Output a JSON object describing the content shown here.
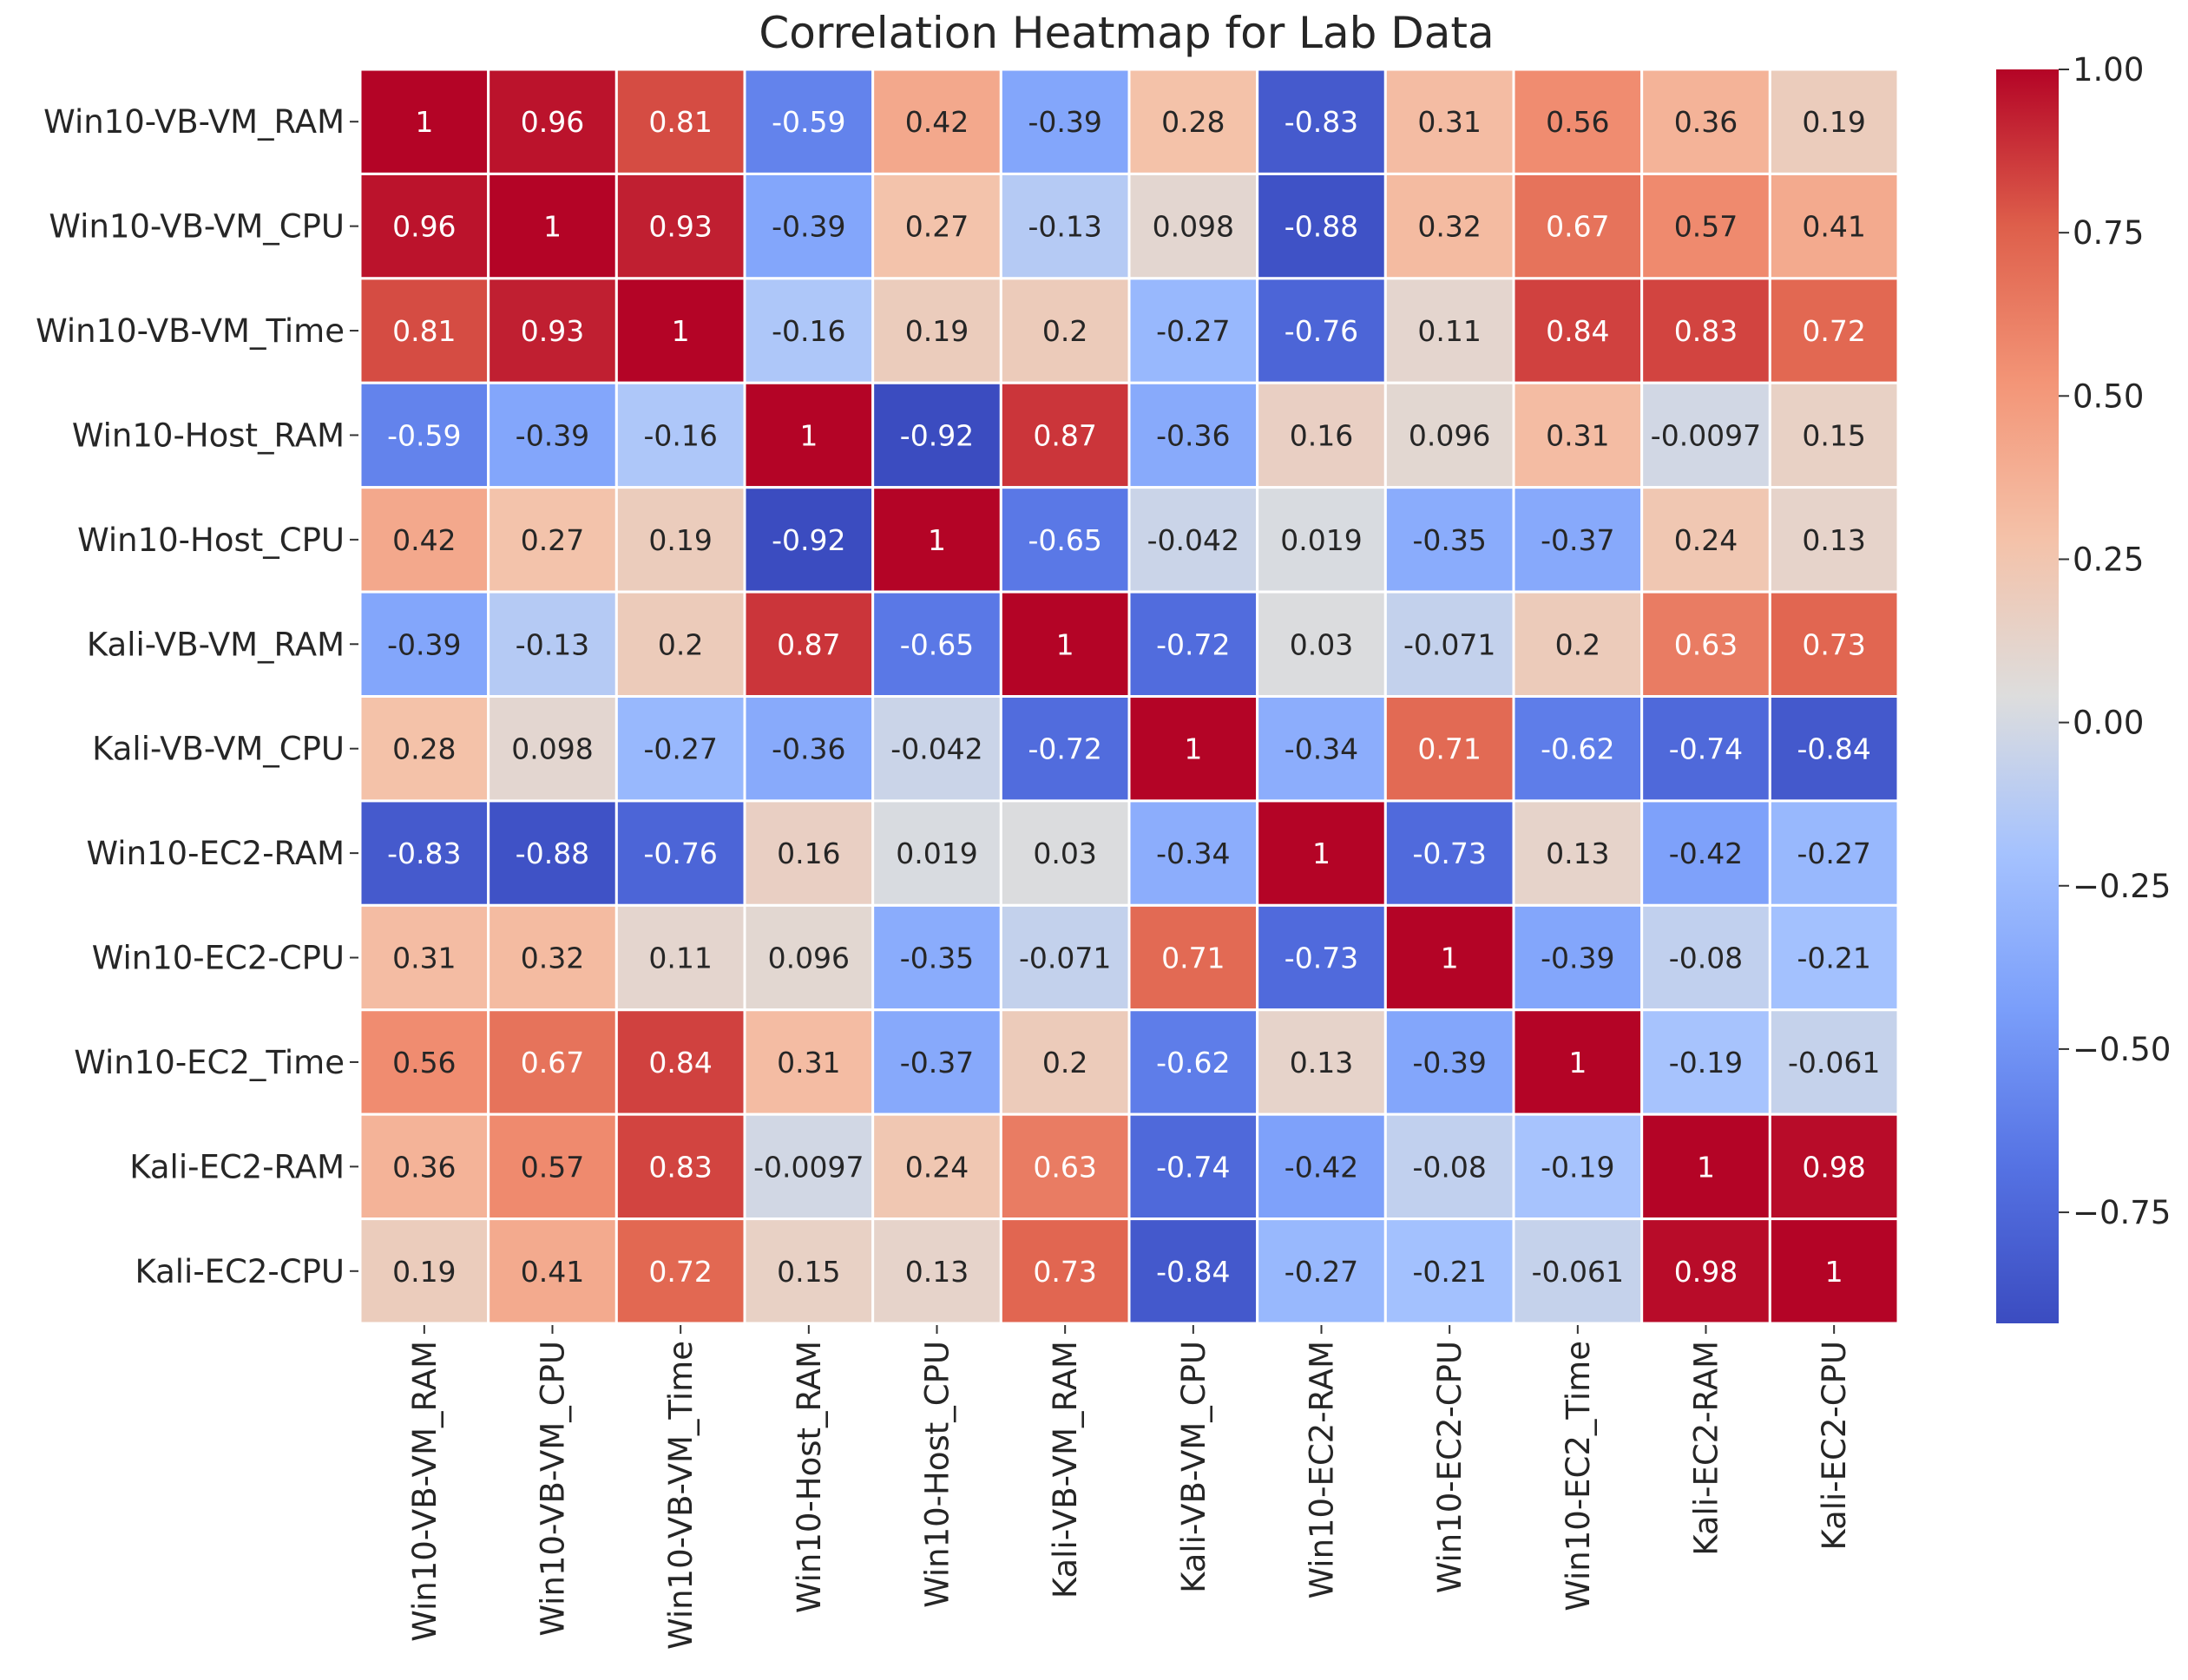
{
  "chart_data": {
    "type": "heatmap",
    "title": "Correlation Heatmap for Lab Data",
    "xlabel": "",
    "ylabel": "",
    "colormap": "coolwarm",
    "row_labels": [
      "Win10-VB-VM_RAM",
      "Win10-VB-VM_CPU",
      "Win10-VB-VM_Time",
      "Win10-Host_RAM",
      "Win10-Host_CPU",
      "Kali-VB-VM_RAM",
      "Kali-VB-VM_CPU",
      "Win10-EC2-RAM",
      "Win10-EC2-CPU",
      "Win10-EC2_Time",
      "Kali-EC2-RAM",
      "Kali-EC2-CPU"
    ],
    "col_labels": [
      "Win10-VB-VM_RAM",
      "Win10-VB-VM_CPU",
      "Win10-VB-VM_Time",
      "Win10-Host_RAM",
      "Win10-Host_CPU",
      "Kali-VB-VM_RAM",
      "Kali-VB-VM_CPU",
      "Win10-EC2-RAM",
      "Win10-EC2-CPU",
      "Win10-EC2_Time",
      "Kali-EC2-RAM",
      "Kali-EC2-CPU"
    ],
    "cell_labels": [
      [
        "1",
        "0.96",
        "0.81",
        "-0.59",
        "0.42",
        "-0.39",
        "0.28",
        "-0.83",
        "0.31",
        "0.56",
        "0.36",
        "0.19"
      ],
      [
        "0.96",
        "1",
        "0.93",
        "-0.39",
        "0.27",
        "-0.13",
        "0.098",
        "-0.88",
        "0.32",
        "0.67",
        "0.57",
        "0.41"
      ],
      [
        "0.81",
        "0.93",
        "1",
        "-0.16",
        "0.19",
        "0.2",
        "-0.27",
        "-0.76",
        "0.11",
        "0.84",
        "0.83",
        "0.72"
      ],
      [
        "-0.59",
        "-0.39",
        "-0.16",
        "1",
        "-0.92",
        "0.87",
        "-0.36",
        "0.16",
        "0.096",
        "0.31",
        "-0.0097",
        "0.15"
      ],
      [
        "0.42",
        "0.27",
        "0.19",
        "-0.92",
        "1",
        "-0.65",
        "-0.042",
        "0.019",
        "-0.35",
        "-0.37",
        "0.24",
        "0.13"
      ],
      [
        "-0.39",
        "-0.13",
        "0.2",
        "0.87",
        "-0.65",
        "1",
        "-0.72",
        "0.03",
        "-0.071",
        "0.2",
        "0.63",
        "0.73"
      ],
      [
        "0.28",
        "0.098",
        "-0.27",
        "-0.36",
        "-0.042",
        "-0.72",
        "1",
        "-0.34",
        "0.71",
        "-0.62",
        "-0.74",
        "-0.84"
      ],
      [
        "-0.83",
        "-0.88",
        "-0.76",
        "0.16",
        "0.019",
        "0.03",
        "-0.34",
        "1",
        "-0.73",
        "0.13",
        "-0.42",
        "-0.27"
      ],
      [
        "0.31",
        "0.32",
        "0.11",
        "0.096",
        "-0.35",
        "-0.071",
        "0.71",
        "-0.73",
        "1",
        "-0.39",
        "-0.08",
        "-0.21"
      ],
      [
        "0.56",
        "0.67",
        "0.84",
        "0.31",
        "-0.37",
        "0.2",
        "-0.62",
        "0.13",
        "-0.39",
        "1",
        "-0.19",
        "-0.061"
      ],
      [
        "0.36",
        "0.57",
        "0.83",
        "-0.0097",
        "0.24",
        "0.63",
        "-0.74",
        "-0.42",
        "-0.08",
        "-0.19",
        "1",
        "0.98"
      ],
      [
        "0.19",
        "0.41",
        "0.72",
        "0.15",
        "0.13",
        "0.73",
        "-0.84",
        "-0.27",
        "-0.21",
        "-0.061",
        "0.98",
        "1"
      ]
    ],
    "colorbar": {
      "range": [
        -0.92,
        1.0
      ],
      "ticks": [
        1.0,
        0.75,
        0.5,
        0.25,
        0.0,
        -0.25,
        -0.5,
        -0.75
      ],
      "tick_labels": [
        "1.00",
        "0.75",
        "0.50",
        "0.25",
        "0.00",
        "−0.25",
        "−0.50",
        "−0.75"
      ]
    }
  }
}
